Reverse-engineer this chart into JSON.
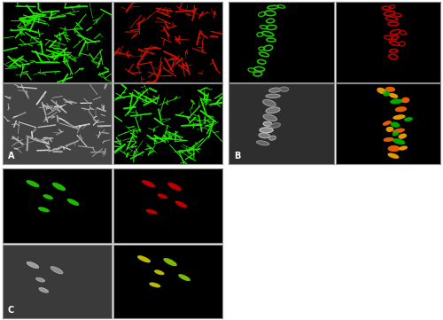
{
  "fig_width": 5.0,
  "fig_height": 3.61,
  "dpi": 100,
  "background": "#ffffff",
  "panel_A": {
    "tl_color": "#22ee00",
    "tl_bg": "#000000",
    "tr_color": "#cc1100",
    "tr_bg": "#000000",
    "bl_bg": "#444444",
    "br_color": "#22ee00",
    "br_bg": "#000000",
    "label": "A"
  },
  "panel_B": {
    "tl_color": "#22cc00",
    "tl_bg": "#000000",
    "tr_color": "#cc0000",
    "tr_bg": "#000000",
    "bl_bg": "#2e2e2e",
    "br_colors": [
      "#ff6600",
      "#ffaa00",
      "#00bb00"
    ],
    "br_bg": "#000000",
    "label": "B"
  },
  "panel_C": {
    "tl_color": "#22cc00",
    "tl_bg": "#000000",
    "tr_color": "#cc0000",
    "tr_bg": "#000000",
    "bl_bg": "#3a3a3a",
    "br_colors": [
      "#cccc00",
      "#88cc00"
    ],
    "br_bg": "#000000",
    "label": "C"
  },
  "border_color": "#888888",
  "border_lw": 0.8
}
